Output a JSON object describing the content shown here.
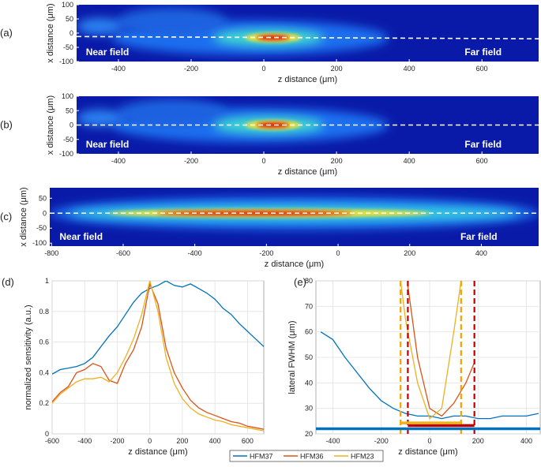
{
  "chart_data": [
    {
      "type": "heatmap",
      "label": "(a)",
      "xlabel": "z distance (μm)",
      "ylabel": "x distance (μm)",
      "xlim": [
        -515,
        756
      ],
      "xticks": [
        -400,
        -200,
        0,
        200,
        400,
        600
      ],
      "ylim": [
        -100,
        100
      ],
      "yticks": [
        -100,
        -50,
        0,
        50,
        100
      ],
      "centerline": [
        -12,
        -20
      ],
      "annotations": [
        "Near field",
        "Far field"
      ]
    },
    {
      "type": "heatmap",
      "label": "(b)",
      "xlabel": "z distance (μm)",
      "ylabel": "x distance (μm)",
      "xlim": [
        -515,
        756
      ],
      "xticks": [
        -400,
        -200,
        0,
        200,
        400,
        600
      ],
      "ylim": [
        -100,
        100
      ],
      "yticks": [
        -100,
        -50,
        0,
        50,
        100
      ],
      "centerline": [
        0,
        0
      ],
      "annotations": [
        "Near field",
        "Far field"
      ]
    },
    {
      "type": "heatmap",
      "label": "(c)",
      "xlabel": "z distance (μm)",
      "ylabel": "x distance (μm)",
      "xlim": [
        -805,
        560
      ],
      "xticks": [
        -800,
        -600,
        -400,
        -200,
        0,
        200,
        400
      ],
      "ylim": [
        -110,
        85
      ],
      "yticks": [
        -100,
        -50,
        0,
        50
      ],
      "centerline": [
        0,
        0
      ],
      "annotations": [
        "Near field",
        "Far field"
      ]
    },
    {
      "type": "line",
      "label": "(d)",
      "xlabel": "z distance (μm)",
      "ylabel": "normalized sensitivity (a.u.)",
      "xlim": [
        -600,
        700
      ],
      "xticks": [
        -600,
        -400,
        -200,
        0,
        200,
        400,
        600
      ],
      "ylim": [
        0,
        1
      ],
      "yticks": [
        0,
        0.2,
        0.4,
        0.6,
        0.8,
        1
      ],
      "grid": true,
      "series": [
        {
          "name": "HFM37",
          "color": "#0072bd",
          "x": [
            -600,
            -550,
            -500,
            -450,
            -400,
            -350,
            -300,
            -250,
            -200,
            -150,
            -100,
            -50,
            0,
            50,
            100,
            150,
            200,
            250,
            300,
            350,
            400,
            450,
            500,
            550,
            600,
            650,
            700
          ],
          "values": [
            0.39,
            0.42,
            0.43,
            0.44,
            0.46,
            0.5,
            0.57,
            0.64,
            0.7,
            0.78,
            0.86,
            0.92,
            0.95,
            0.97,
            1.0,
            0.97,
            0.96,
            0.98,
            0.95,
            0.92,
            0.88,
            0.82,
            0.78,
            0.72,
            0.67,
            0.62,
            0.57
          ]
        },
        {
          "name": "HFM36",
          "color": "#d95319",
          "x": [
            -600,
            -550,
            -500,
            -450,
            -400,
            -350,
            -300,
            -250,
            -200,
            -150,
            -100,
            -50,
            0,
            50,
            100,
            150,
            200,
            250,
            300,
            350,
            400,
            450,
            500,
            550,
            600,
            650,
            700
          ],
          "values": [
            0.21,
            0.27,
            0.31,
            0.4,
            0.42,
            0.46,
            0.44,
            0.35,
            0.33,
            0.46,
            0.55,
            0.7,
            0.98,
            0.85,
            0.56,
            0.4,
            0.3,
            0.22,
            0.17,
            0.14,
            0.12,
            0.1,
            0.08,
            0.07,
            0.05,
            0.04,
            0.03
          ]
        },
        {
          "name": "HFM23",
          "color": "#edb120",
          "x": [
            -600,
            -550,
            -500,
            -450,
            -400,
            -350,
            -300,
            -250,
            -200,
            -150,
            -100,
            -50,
            0,
            50,
            100,
            150,
            200,
            250,
            300,
            350,
            400,
            450,
            500,
            550,
            600,
            650,
            700
          ],
          "values": [
            0.2,
            0.26,
            0.3,
            0.34,
            0.36,
            0.36,
            0.37,
            0.34,
            0.4,
            0.5,
            0.62,
            0.78,
            1.0,
            0.8,
            0.5,
            0.33,
            0.23,
            0.17,
            0.13,
            0.11,
            0.09,
            0.08,
            0.06,
            0.05,
            0.04,
            0.03,
            0.02
          ]
        }
      ]
    },
    {
      "type": "line",
      "label": "(e)",
      "xlabel": "z distance (μm)",
      "ylabel": "lateral FWHM (μm)",
      "xlim": [
        -470,
        457
      ],
      "xticks": [
        -400,
        -200,
        0,
        200,
        400
      ],
      "ylim": [
        20,
        80
      ],
      "yticks": [
        20,
        30,
        40,
        50,
        60,
        70,
        80
      ],
      "grid": true,
      "series": [
        {
          "color": "#0072bd",
          "x": [
            -450,
            -400,
            -350,
            -300,
            -250,
            -200,
            -150,
            -100,
            -50,
            0,
            50,
            100,
            150,
            200,
            250,
            300,
            350,
            400,
            450
          ],
          "values": [
            60,
            57,
            50,
            44,
            38,
            33,
            30,
            28,
            27,
            27,
            26,
            27,
            27,
            26,
            26,
            27,
            27,
            27,
            28
          ]
        },
        {
          "color": "#d95319",
          "x": [
            -90,
            -50,
            0,
            50,
            100,
            150,
            185
          ],
          "values": [
            78,
            50,
            30,
            27,
            32,
            40,
            48
          ]
        },
        {
          "color": "#edb120",
          "x": [
            -120,
            -100,
            -50,
            0,
            50,
            100,
            130
          ],
          "values": [
            80,
            65,
            40,
            26,
            30,
            60,
            80
          ]
        }
      ],
      "vlines": [
        {
          "x": -120,
          "color": "#f5a000"
        },
        {
          "x": 130,
          "color": "#f5a000"
        },
        {
          "x": -90,
          "color": "#c00000"
        },
        {
          "x": 185,
          "color": "#c00000"
        }
      ],
      "hbars": [
        {
          "x": [
            -470,
            457
          ],
          "y": 22,
          "color": "#0072bd"
        },
        {
          "x": [
            -90,
            185
          ],
          "y": 23.3,
          "color": "#c00000"
        },
        {
          "x": [
            -120,
            130
          ],
          "y": 24.3,
          "color": "#edb120"
        }
      ]
    }
  ]
}
